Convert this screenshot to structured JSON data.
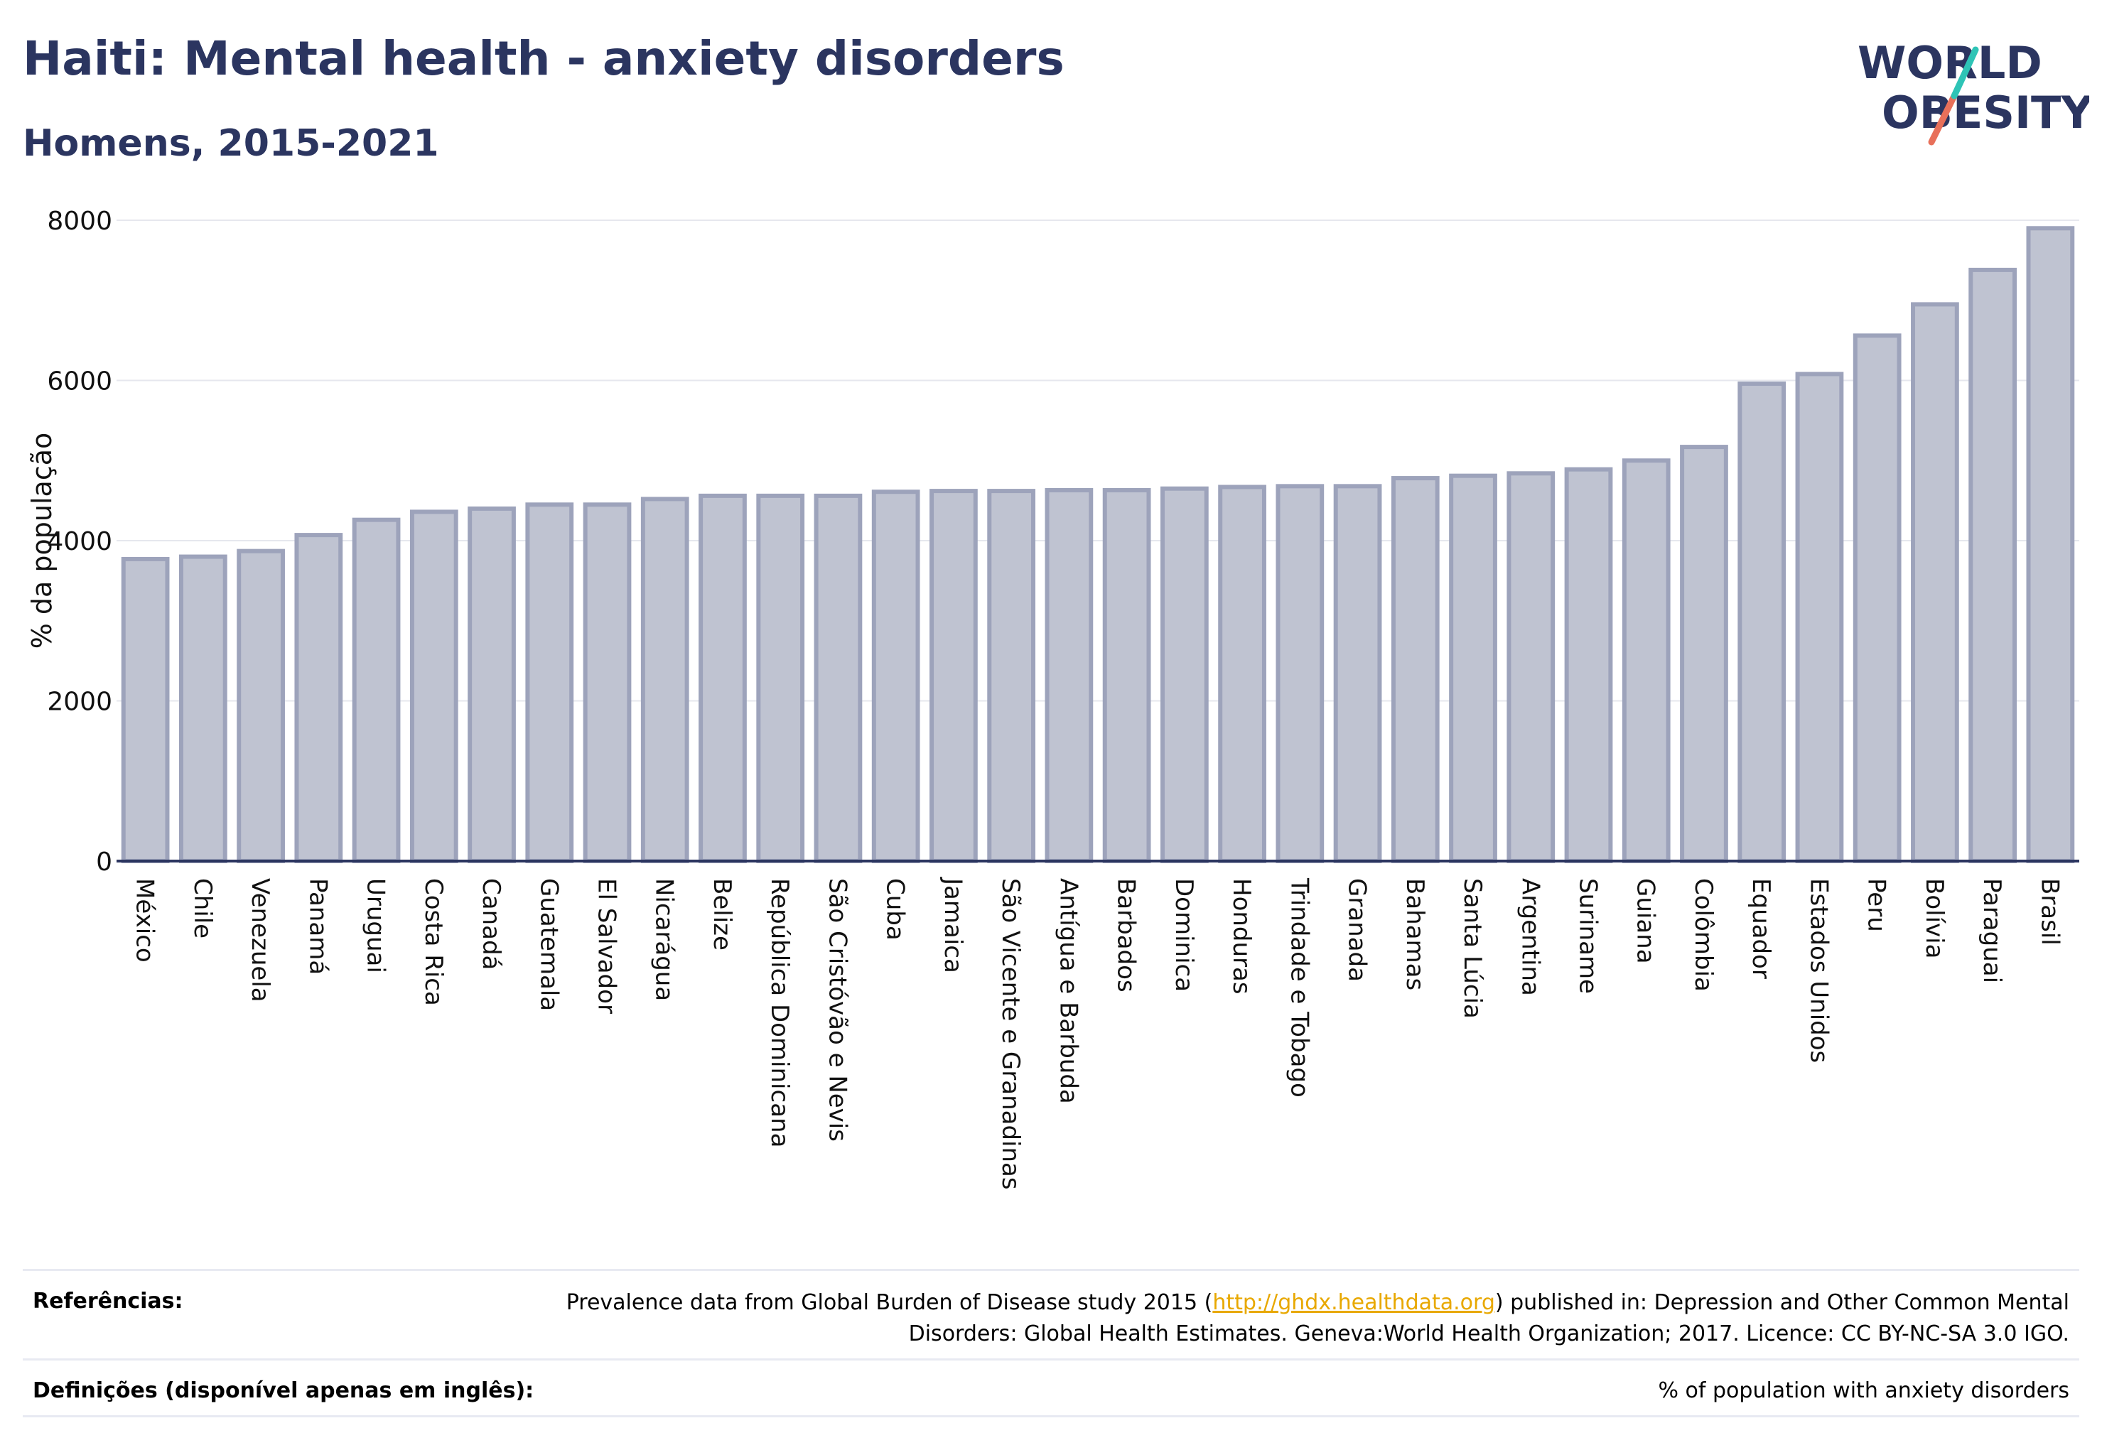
{
  "header": {
    "title": "Haiti: Mental health - anxiety disorders",
    "subtitle": "Homens, 2015-2021"
  },
  "logo": {
    "line1": "WORLD",
    "line2": "OBESITY",
    "accent_teal": "#2ec4b6",
    "accent_coral": "#e8705a",
    "text_color": "#2b3560"
  },
  "chart_data": {
    "type": "bar",
    "ylabel": "% da população",
    "ylim": [
      0,
      8000
    ],
    "yticks": [
      0,
      2000,
      4000,
      6000,
      8000
    ],
    "grid": true,
    "bar_fill": "#bfc3d1",
    "bar_stroke": "#9da3bb",
    "categories": [
      "México",
      "Chile",
      "Venezuela",
      "Panamá",
      "Uruguai",
      "Costa Rica",
      "Canadá",
      "Guatemala",
      "El Salvador",
      "Nicarágua",
      "Belize",
      "República Dominicana",
      "São Cristóvão e Nevis",
      "Cuba",
      "Jamaica",
      "São Vicente e Granadinas",
      "Antígua e Barbuda",
      "Barbados",
      "Dominica",
      "Honduras",
      "Trindade e Tobago",
      "Granada",
      "Bahamas",
      "Santa Lúcia",
      "Argentina",
      "Suriname",
      "Guiana",
      "Colômbia",
      "Equador",
      "Estados Unidos",
      "Peru",
      "Bolívia",
      "Paraguai",
      "Brasil"
    ],
    "values": [
      3770,
      3800,
      3870,
      4070,
      4260,
      4360,
      4400,
      4450,
      4450,
      4520,
      4560,
      4560,
      4560,
      4610,
      4620,
      4620,
      4630,
      4630,
      4650,
      4670,
      4680,
      4680,
      4780,
      4810,
      4840,
      4890,
      5000,
      5170,
      5960,
      6080,
      6560,
      6950,
      7380,
      7900
    ]
  },
  "footer": {
    "ref_label": "Referências:",
    "ref_text_pre": "Prevalence data from Global Burden of Disease study 2015 (",
    "ref_link": "http://ghdx.healthdata.org",
    "ref_text_post": ") published in: Depression and Other Common Mental Disorders: Global Health Estimates. Geneva:World Health Organization; 2017. Licence: CC BY-NC-SA 3.0 IGO.",
    "def_label": "Definições (disponível apenas em inglês):",
    "def_text": "% of population with anxiety disorders"
  }
}
